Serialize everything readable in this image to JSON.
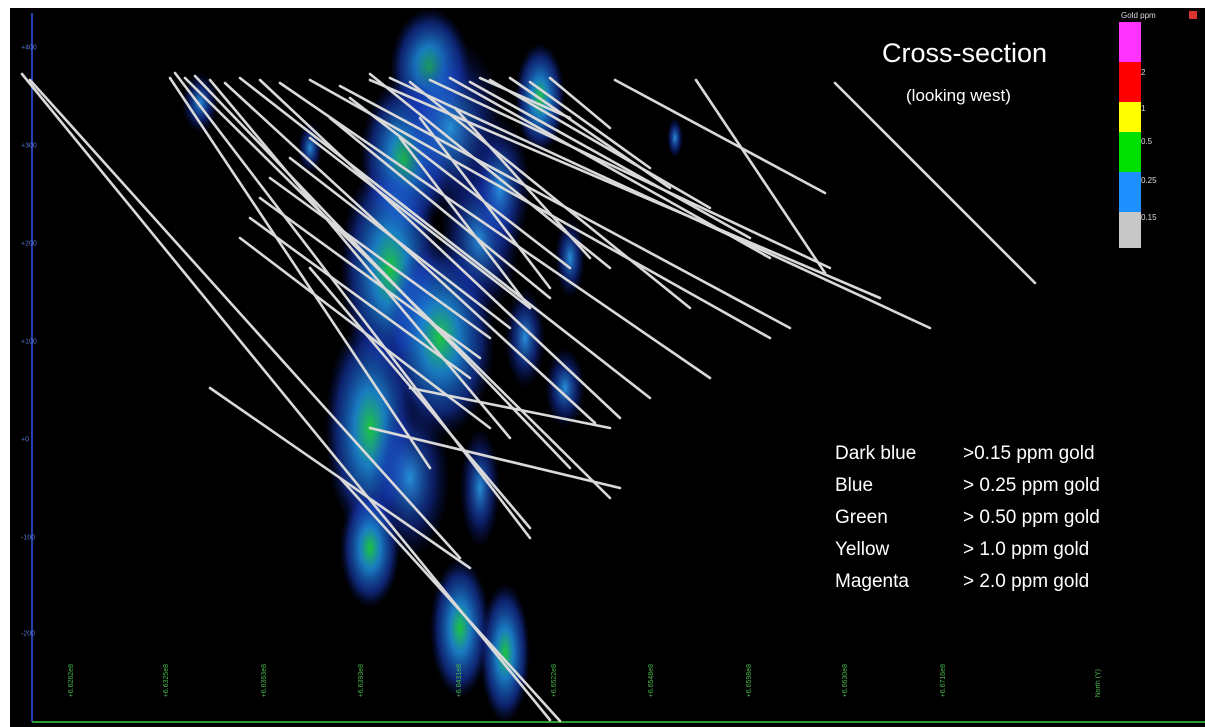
{
  "title": "Cross-section",
  "subtitle": "(looking west)",
  "colorbar": {
    "title": "Gold ppm",
    "ticks": [
      "2",
      "1",
      "0.5",
      "0.25",
      "0.15"
    ],
    "colors": [
      "#ff33ff",
      "#ff0000",
      "#ffff00",
      "#00e000",
      "#1e90ff",
      "#c8c8c8"
    ]
  },
  "legend": [
    {
      "name": "Dark blue",
      "value": ">0.15 ppm gold"
    },
    {
      "name": "Blue",
      "value": "> 0.25 ppm gold"
    },
    {
      "name": "Green",
      "value": "> 0.50 ppm gold"
    },
    {
      "name": "Yellow",
      "value": "> 1.0 ppm gold"
    },
    {
      "name": "Magenta",
      "value": "> 2.0 ppm gold"
    }
  ],
  "axes": {
    "y_ticks": [
      "+400",
      "+300",
      "+200",
      "+100",
      "+0",
      "-100",
      "-200"
    ],
    "x_ticks": [
      "+6.6262e8",
      "+6.6325e8",
      "+6.6363e8",
      "+6.6393e8",
      "+6.6431e8",
      "+6.6522e8",
      "+6.6548e8",
      "+6.6598e8",
      "+6.6630e8",
      "+6.6716e8",
      "North (Y)"
    ]
  },
  "colors": {
    "background": "#000000",
    "drillhole": "#d9d9d9",
    "y_axis": "#2940b0",
    "x_axis": "#2f9a35"
  }
}
